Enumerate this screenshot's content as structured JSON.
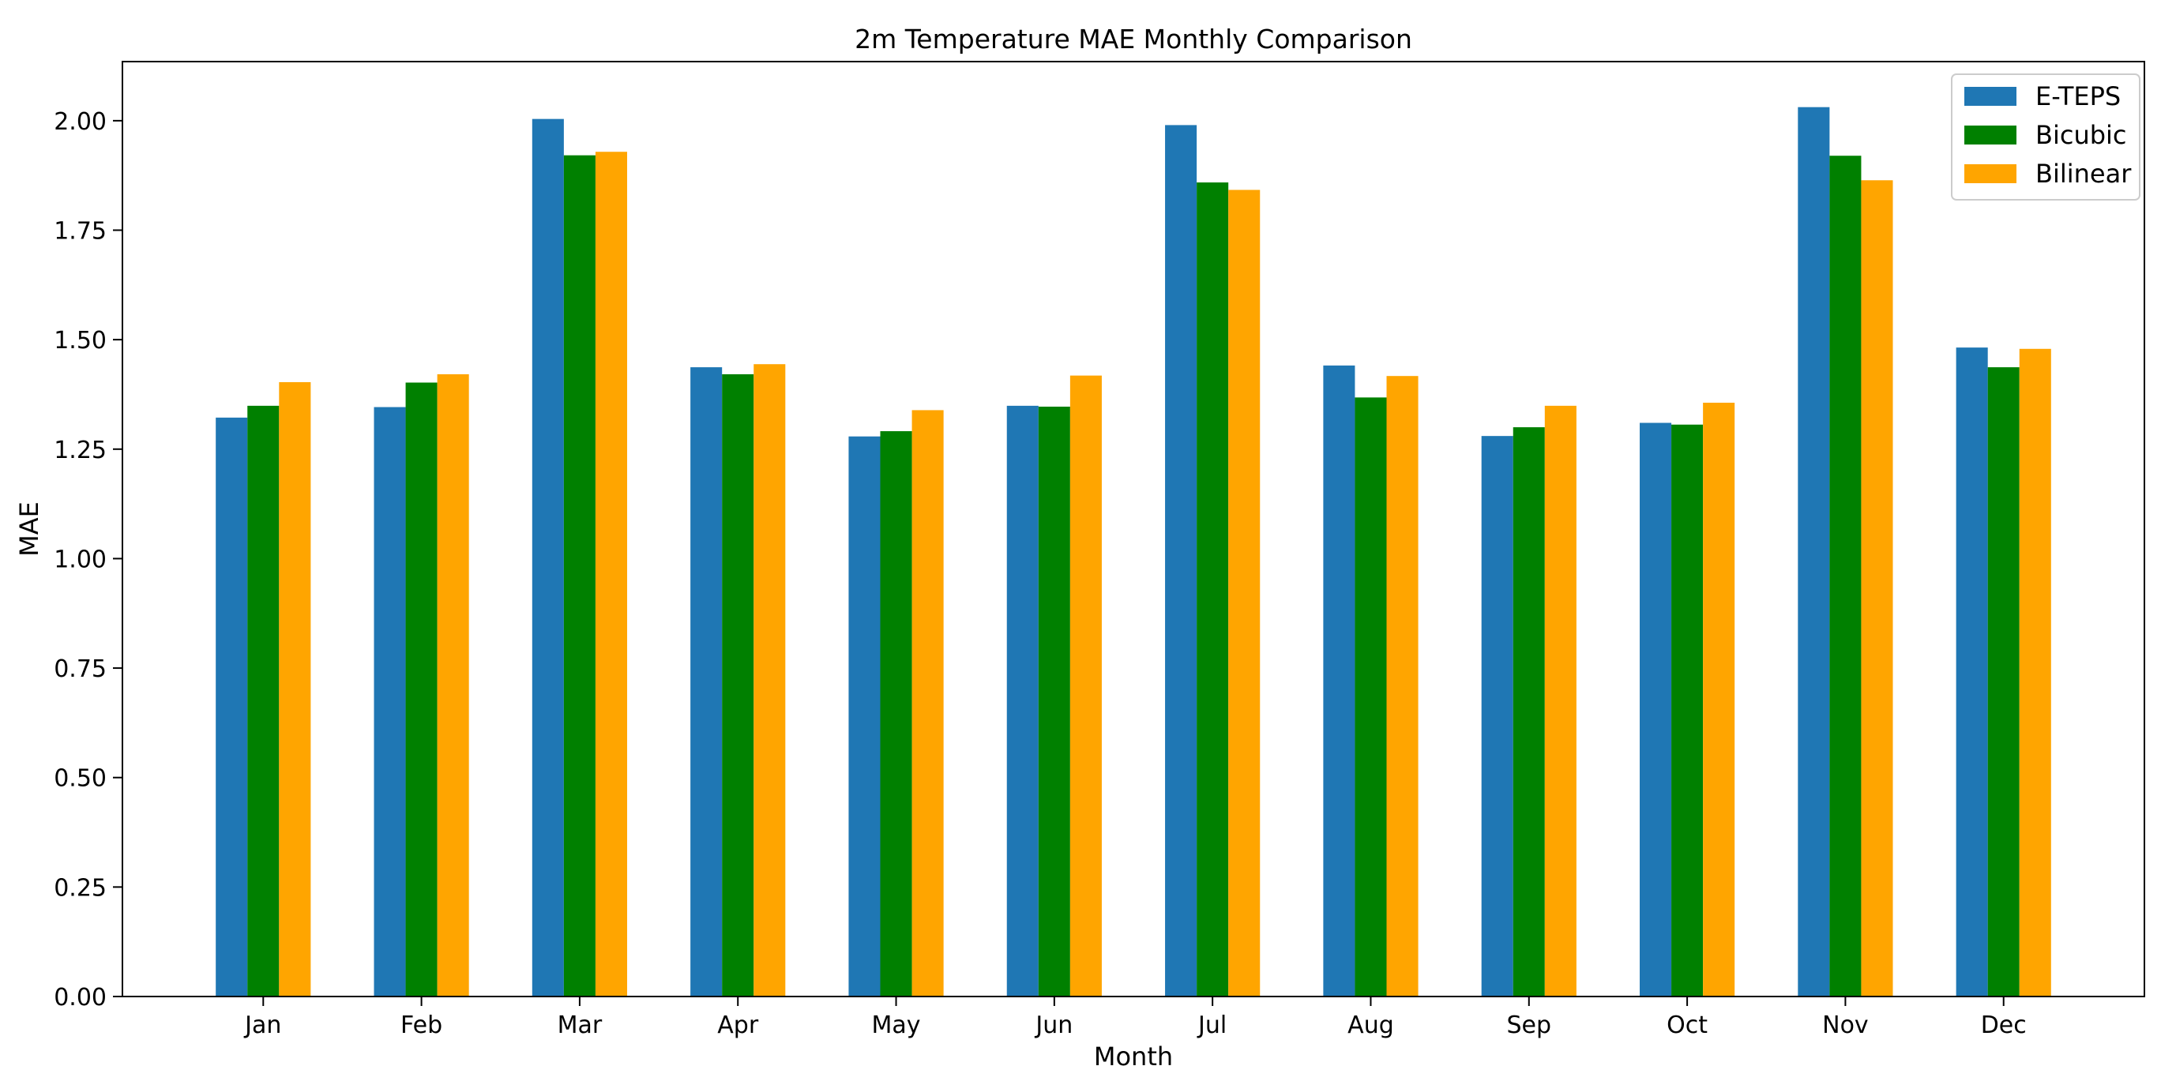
{
  "chart_data": {
    "type": "bar",
    "title": "2m Temperature MAE Monthly Comparison",
    "xlabel": "Month",
    "ylabel": "MAE",
    "ylim": [
      0,
      2.135
    ],
    "yticks": [
      "0.00",
      "0.25",
      "0.50",
      "0.75",
      "1.00",
      "1.25",
      "1.50",
      "1.75",
      "2.00"
    ],
    "ytick_values": [
      0,
      0.25,
      0.5,
      0.75,
      1.0,
      1.25,
      1.5,
      1.75,
      2.0
    ],
    "categories": [
      "Jan",
      "Feb",
      "Mar",
      "Apr",
      "May",
      "Jun",
      "Jul",
      "Aug",
      "Sep",
      "Oct",
      "Nov",
      "Dec"
    ],
    "grid": false,
    "legend_position": "top-right",
    "series": [
      {
        "name": "E-TEPS",
        "color": "#1f77b4",
        "values": [
          1.322,
          1.346,
          2.004,
          1.437,
          1.279,
          1.349,
          1.99,
          1.441,
          1.28,
          1.31,
          2.031,
          1.482
        ]
      },
      {
        "name": "Bicubic",
        "color": "#008000",
        "values": [
          1.349,
          1.402,
          1.921,
          1.421,
          1.291,
          1.347,
          1.859,
          1.368,
          1.3,
          1.306,
          1.92,
          1.437
        ]
      },
      {
        "name": "Bilinear",
        "color": "#ffa500",
        "values": [
          1.403,
          1.421,
          1.929,
          1.444,
          1.339,
          1.418,
          1.842,
          1.417,
          1.349,
          1.356,
          1.864,
          1.479
        ]
      }
    ]
  }
}
